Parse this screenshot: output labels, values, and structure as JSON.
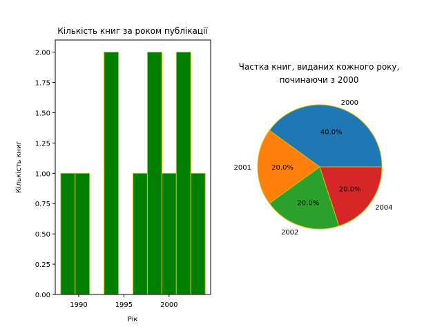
{
  "chart_data": [
    {
      "type": "bar",
      "title": "Кількість книг за роком публікації",
      "xlabel": "Рік",
      "ylabel": "Кількість книг",
      "xlim": [
        1987.4,
        1004.6
      ],
      "ylim": [
        0,
        2.1
      ],
      "xticks": [
        1990,
        1995,
        2000
      ],
      "yticks": [
        "0.00",
        "0.25",
        "0.50",
        "0.75",
        "1.00",
        "1.25",
        "1.50",
        "1.75",
        "2.00"
      ],
      "bars": [
        {
          "x0": 1988.0,
          "x1": 1989.6,
          "value": 1
        },
        {
          "x0": 1989.6,
          "x1": 1991.2,
          "value": 1
        },
        {
          "x0": 1991.2,
          "x1": 1992.8,
          "value": 0
        },
        {
          "x0": 1992.8,
          "x1": 1994.4,
          "value": 2
        },
        {
          "x0": 1994.4,
          "x1": 1996.0,
          "value": 0
        },
        {
          "x0": 1996.0,
          "x1": 1997.6,
          "value": 1
        },
        {
          "x0": 1997.6,
          "x1": 1999.2,
          "value": 2
        },
        {
          "x0": 1999.2,
          "x1": 2000.8,
          "value": 1
        },
        {
          "x0": 2000.8,
          "x1": 2002.4,
          "value": 2
        },
        {
          "x0": 2002.4,
          "x1": 2004.0,
          "value": 1
        }
      ],
      "bar_color": "#008000",
      "edge_color": "#d4c000"
    },
    {
      "type": "pie",
      "title": "Частка книг, виданих кожного року,",
      "title_line2": "починаючи з 2000",
      "slices": [
        {
          "label": "2000",
          "value": 40.0,
          "pct": "40.0%",
          "color": "#1f77b4"
        },
        {
          "label": "2001",
          "value": 20.0,
          "pct": "20.0%",
          "color": "#ff7f0e"
        },
        {
          "label": "2002",
          "value": 20.0,
          "pct": "20.0%",
          "color": "#2ca02c"
        },
        {
          "label": "2004",
          "value": 20.0,
          "pct": "20.0%",
          "color": "#d62728"
        }
      ],
      "edge_color": "#d4c000"
    }
  ]
}
